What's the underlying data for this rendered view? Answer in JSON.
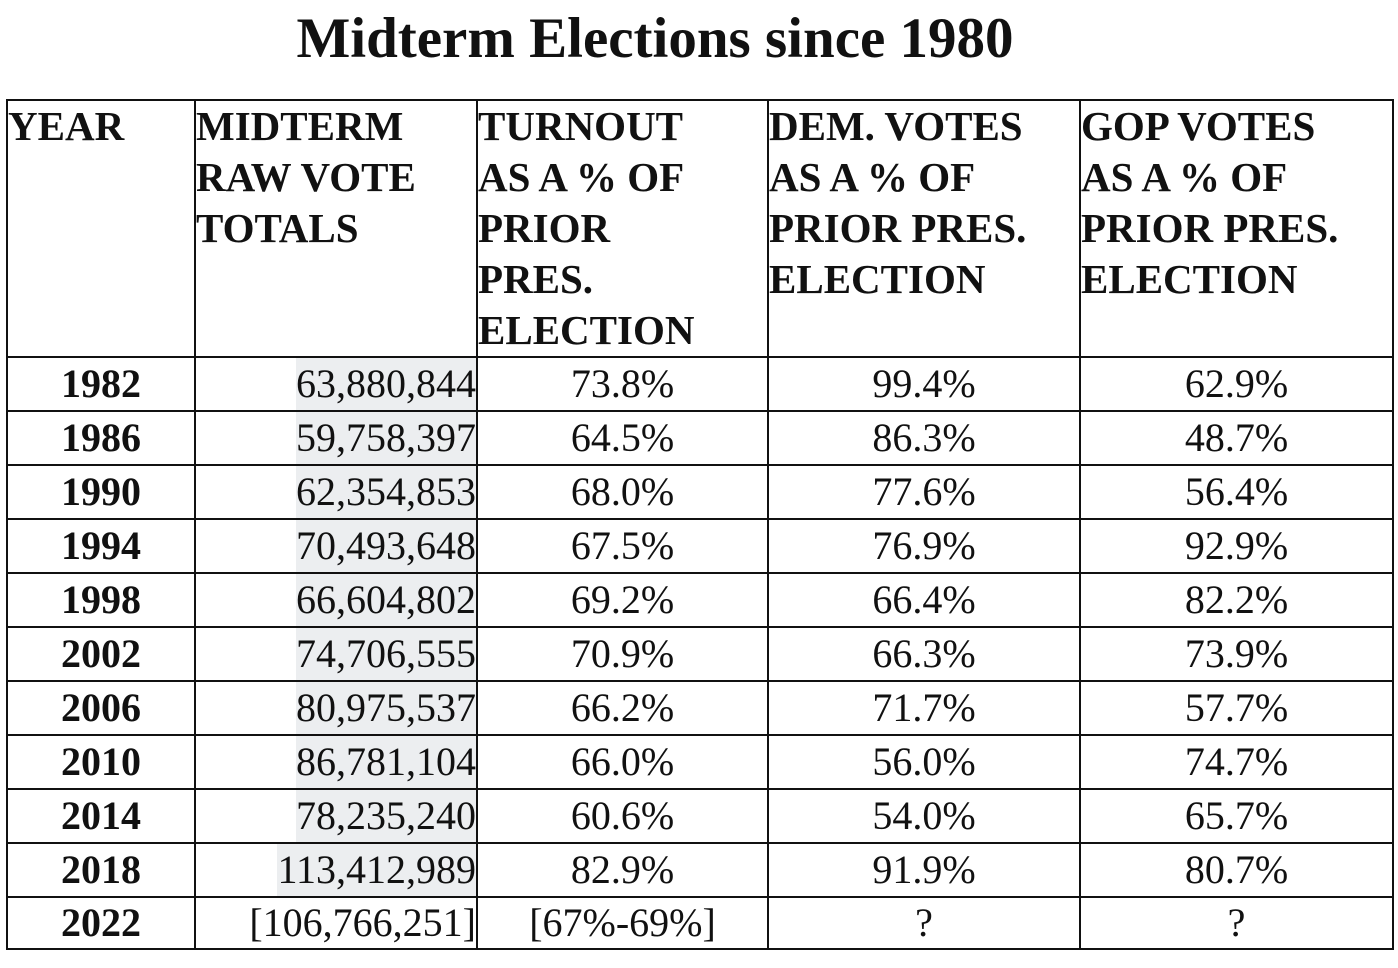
{
  "title": "Midterm Elections since 1980",
  "table": {
    "headers": [
      {
        "lines": [
          "YEAR"
        ]
      },
      {
        "lines": [
          "MIDTERM",
          "RAW VOTE",
          "TOTALS"
        ]
      },
      {
        "lines": [
          "TURNOUT",
          "AS A % OF",
          "PRIOR",
          "PRES.",
          "ELECTION"
        ]
      },
      {
        "lines": [
          "DEM. VOTES",
          "AS A % OF",
          "PRIOR PRES.",
          "ELECTION"
        ]
      },
      {
        "lines": [
          "GOP VOTES",
          "AS A % OF",
          "PRIOR PRES.",
          "ELECTION"
        ]
      }
    ],
    "rows": [
      {
        "year": "1982",
        "raw": "63,880,844",
        "turnout": "73.8%",
        "dem": "99.4%",
        "gop": "62.9%"
      },
      {
        "year": "1986",
        "raw": "59,758,397",
        "turnout": "64.5%",
        "dem": "86.3%",
        "gop": "48.7%"
      },
      {
        "year": "1990",
        "raw": "62,354,853",
        "turnout": "68.0%",
        "dem": "77.6%",
        "gop": "56.4%"
      },
      {
        "year": "1994",
        "raw": "70,493,648",
        "turnout": "67.5%",
        "dem": "76.9%",
        "gop": "92.9%"
      },
      {
        "year": "1998",
        "raw": "66,604,802",
        "turnout": "69.2%",
        "dem": "66.4%",
        "gop": "82.2%"
      },
      {
        "year": "2002",
        "raw": "74,706,555",
        "turnout": "70.9%",
        "dem": "66.3%",
        "gop": "73.9%"
      },
      {
        "year": "2006",
        "raw": "80,975,537",
        "turnout": "66.2%",
        "dem": "71.7%",
        "gop": "57.7%"
      },
      {
        "year": "2010",
        "raw": "86,781,104",
        "turnout": "66.0%",
        "dem": "56.0%",
        "gop": "74.7%"
      },
      {
        "year": "2014",
        "raw": "78,235,240",
        "turnout": "60.6%",
        "dem": "54.0%",
        "gop": "65.7%"
      },
      {
        "year": "2018",
        "raw": "113,412,989",
        "turnout": "82.9%",
        "dem": "91.9%",
        "gop": "80.7%"
      },
      {
        "year": "2022",
        "raw": "[106,766,251]",
        "turnout": "[67%-69%]",
        "dem": "?",
        "gop": "?"
      }
    ]
  },
  "colors": {
    "raw_cell_shade": "#eceef0",
    "border": "#111111"
  }
}
